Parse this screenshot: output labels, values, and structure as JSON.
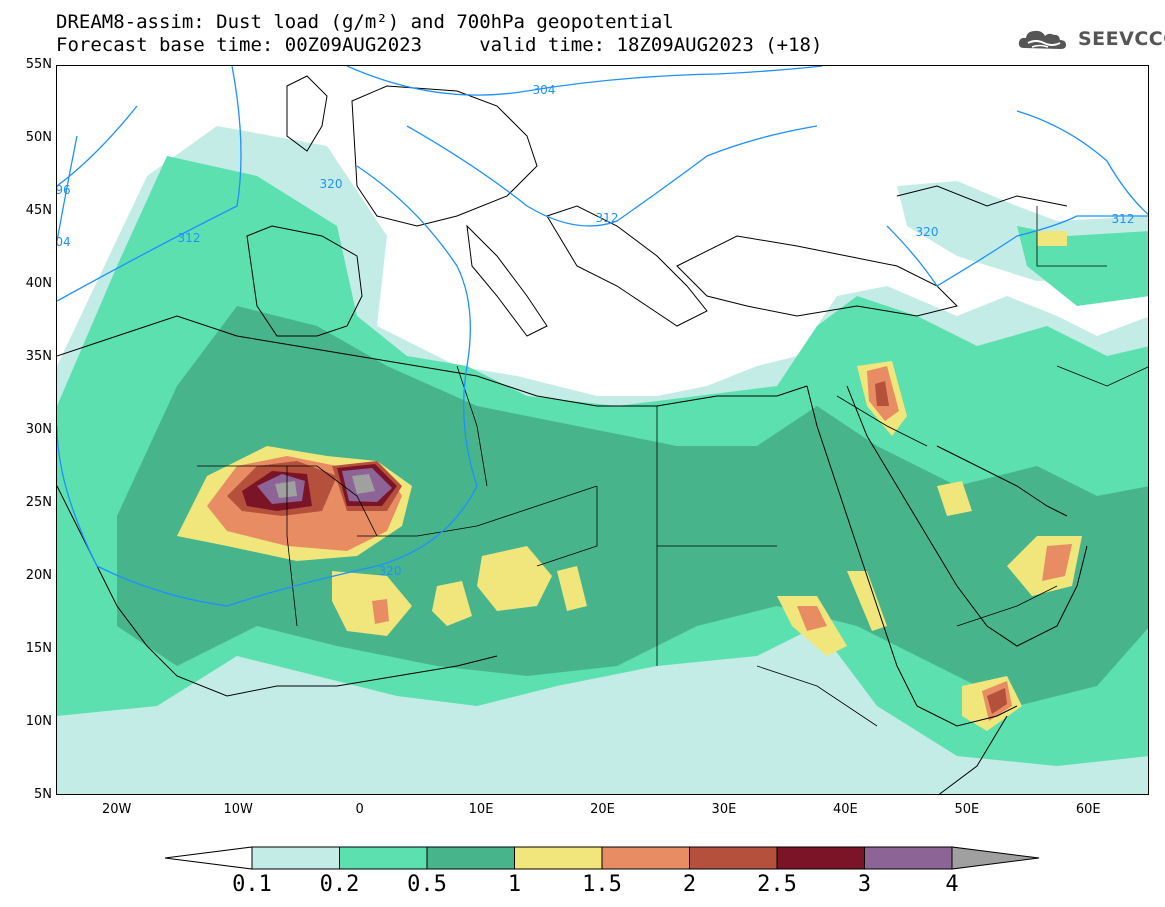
{
  "title": {
    "line1": "DREAM8-assim: Dust load (g/m²) and 700hPa geopotential",
    "line2": "Forecast base time: 00Z09AUG2023     valid time: 18Z09AUG2023 (+18)"
  },
  "logo": {
    "text": "SEEVCCC",
    "icon": "cloud-icon"
  },
  "map": {
    "region": "North Africa, Europe and Middle East",
    "lat_labels": [
      "55N",
      "50N",
      "45N",
      "40N",
      "35N",
      "30N",
      "25N",
      "20N",
      "15N",
      "10N",
      "5N"
    ],
    "lon_labels": [
      "20W",
      "10W",
      "0",
      "10E",
      "20E",
      "30E",
      "40E",
      "50E",
      "60E"
    ],
    "lat_range": [
      5,
      55
    ],
    "lon_range": [
      -25,
      65
    ],
    "contour_labels": [
      "304",
      "320",
      "312",
      "312",
      "320",
      "320",
      "312",
      "96",
      "04"
    ],
    "contour_color": "#1e90ff"
  },
  "colorbar": {
    "labels": [
      "0.1",
      "0.2",
      "0.5",
      "1",
      "1.5",
      "2",
      "2.5",
      "3",
      "4"
    ],
    "colors": [
      "#c4ece6",
      "#5ce0b0",
      "#48b48c",
      "#f0e67c",
      "#e88c64",
      "#b4503c",
      "#7c1428",
      "#8c6496"
    ],
    "under_color": "#ffffff",
    "over_color": "#a0a0a0"
  }
}
